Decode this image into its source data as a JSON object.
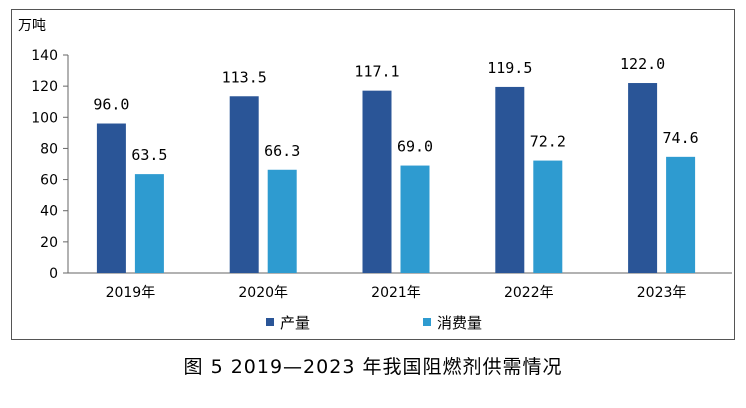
{
  "chart_data": {
    "type": "bar",
    "unit_label": "万吨",
    "categories": [
      "2019年",
      "2020年",
      "2021年",
      "2022年",
      "2023年"
    ],
    "series": [
      {
        "name": "产量",
        "color": "#2a5597",
        "values": [
          96.0,
          113.5,
          117.1,
          119.5,
          122.0
        ]
      },
      {
        "name": "消费量",
        "color": "#2e9bd0",
        "values": [
          63.5,
          66.3,
          69.0,
          72.2,
          74.6
        ]
      }
    ],
    "value_labels": [
      [
        "96.0",
        "113.5",
        "117.1",
        "119.5",
        "122.0"
      ],
      [
        "63.5",
        "66.3",
        "69.0",
        "72.2",
        "74.6"
      ]
    ],
    "ylim": [
      0,
      140
    ],
    "yticks": [
      0,
      20,
      40,
      60,
      80,
      100,
      120,
      140
    ],
    "grid": false,
    "legend_position": "bottom"
  },
  "caption": "图 5  2019—2023 年我国阻燃剂供需情况"
}
